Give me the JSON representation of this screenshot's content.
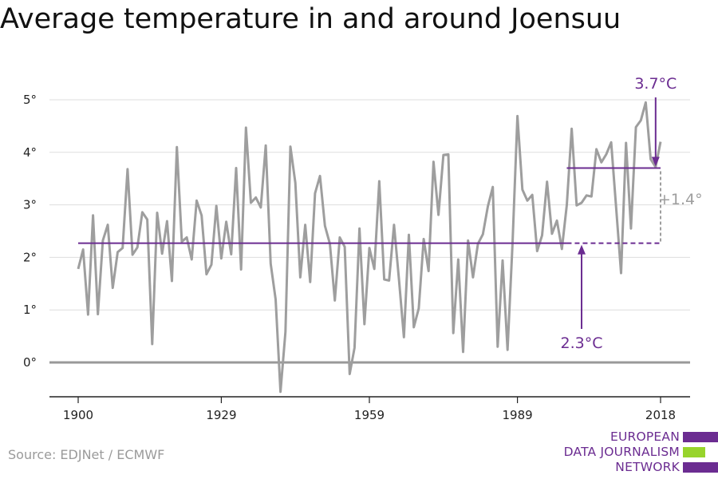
{
  "title": "Average temperature in and around Joensuu",
  "source": "Source: EDJNet / ECMWF",
  "logo": {
    "lines": [
      "EUROPEAN",
      "DATA JOURNALISM",
      "NETWORK"
    ],
    "colors": [
      "#6b2c91",
      "#97d42c",
      "#6b2c91"
    ]
  },
  "colors": {
    "series": "#9e9e9e",
    "accent": "#6b2c91",
    "grid": "#dddddd",
    "zero": "#999999",
    "delta": "#9e9e9e"
  },
  "chart_data": {
    "type": "line",
    "title": "Average temperature in and around Joensuu",
    "xlabel": "",
    "ylabel": "",
    "x_ticks": [
      1900,
      1929,
      1959,
      1989,
      2018
    ],
    "y_ticks": [
      0,
      1,
      2,
      3,
      4,
      5
    ],
    "y_tick_labels": [
      "0°",
      "1°",
      "2°",
      "3°",
      "4°",
      "5°"
    ],
    "xlim": [
      1900,
      2018
    ],
    "ylim": [
      -0.6,
      5.3
    ],
    "grid": true,
    "legend": "none",
    "series": [
      {
        "x": [
          1900,
          1901,
          1902,
          1903,
          1904,
          1905,
          1906,
          1907,
          1908,
          1909,
          1910,
          1911,
          1912,
          1913,
          1914,
          1915,
          1916,
          1917,
          1918,
          1919,
          1920,
          1921,
          1922,
          1923,
          1924,
          1925,
          1926,
          1927,
          1928,
          1929,
          1930,
          1931,
          1932,
          1933,
          1934,
          1935,
          1936,
          1937,
          1938,
          1939,
          1940,
          1941,
          1942,
          1943,
          1944,
          1945,
          1946,
          1947,
          1948,
          1949,
          1950,
          1951,
          1952,
          1953,
          1954,
          1955,
          1956,
          1957,
          1958,
          1959,
          1960,
          1961,
          1962,
          1963,
          1964,
          1965,
          1966,
          1967,
          1968,
          1969,
          1970,
          1971,
          1972,
          1973,
          1974,
          1975,
          1976,
          1977,
          1978,
          1979,
          1980,
          1981,
          1982,
          1983,
          1984,
          1985,
          1986,
          1987,
          1988,
          1989,
          1990,
          1991,
          1992,
          1993,
          1994,
          1995,
          1996,
          1997,
          1998,
          1999,
          2000,
          2001,
          2002,
          2003,
          2004,
          2005,
          2006,
          2007,
          2008,
          2009,
          2010,
          2011,
          2012,
          2013,
          2014,
          2015,
          2016,
          2017,
          2018
        ],
        "values": [
          1.78,
          2.15,
          0.91,
          2.8,
          0.92,
          2.32,
          2.62,
          1.42,
          2.1,
          2.18,
          3.68,
          2.05,
          2.19,
          2.86,
          2.72,
          0.35,
          2.85,
          2.07,
          2.69,
          1.55,
          4.1,
          2.3,
          2.38,
          1.96,
          3.08,
          2.8,
          1.68,
          1.86,
          2.98,
          1.98,
          2.68,
          2.06,
          3.7,
          1.77,
          4.47,
          3.04,
          3.14,
          2.95,
          4.13,
          1.88,
          1.2,
          -0.56,
          0.58,
          4.11,
          3.42,
          1.62,
          2.62,
          1.53,
          3.22,
          3.55,
          2.6,
          2.26,
          1.18,
          2.38,
          2.2,
          -0.22,
          0.28,
          2.55,
          0.73,
          2.18,
          1.78,
          3.45,
          1.58,
          1.56,
          2.62,
          1.58,
          0.48,
          2.43,
          0.67,
          1.03,
          2.35,
          1.74,
          3.82,
          2.81,
          3.95,
          3.96,
          0.56,
          1.96,
          0.2,
          2.32,
          1.62,
          2.26,
          2.44,
          2.97,
          3.34,
          0.3,
          1.94,
          0.24,
          2.25,
          4.69,
          3.29,
          3.08,
          3.19,
          2.12,
          2.42,
          3.44,
          2.45,
          2.7,
          2.16,
          3.0,
          4.45,
          2.99,
          3.04,
          3.18,
          3.16,
          4.06,
          3.81,
          3.96,
          4.19,
          2.95,
          1.7,
          4.18,
          2.55,
          4.48,
          4.61,
          4.95,
          3.87,
          3.72,
          4.2
        ]
      }
    ],
    "reference_lines": [
      {
        "label": "2.3°C",
        "value": 2.27,
        "x_start": 1900,
        "x_end": 2018,
        "dashed_from": 1999
      },
      {
        "label": "3.7°C",
        "value": 3.7,
        "x_start": 1999,
        "x_end": 2018
      }
    ],
    "annotations": {
      "low": "2.3°C",
      "high": "3.7°C",
      "delta": "+1.4°"
    }
  }
}
